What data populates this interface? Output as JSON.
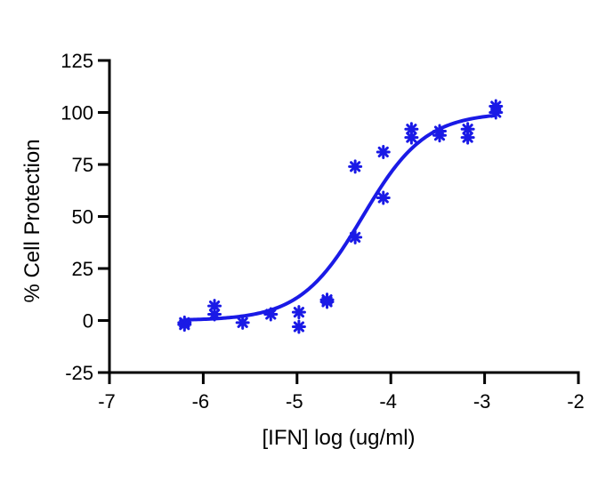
{
  "chart_data": {
    "type": "scatter",
    "title": "",
    "xlabel": "[IFN] log (ug/ml)",
    "ylabel": "% Cell Protection",
    "xlim": [
      -7,
      -2
    ],
    "ylim": [
      -25,
      125
    ],
    "xticks": [
      -7,
      -6,
      -5,
      -4,
      -3,
      -2
    ],
    "yticks": [
      -25,
      0,
      25,
      50,
      75,
      100,
      125
    ],
    "grid": false,
    "legend": "none",
    "color": "#1a1ae6",
    "series": [
      {
        "kind": "points",
        "x": [
          -6.2,
          -6.2,
          -5.88,
          -5.88,
          -5.58,
          -5.28,
          -4.98,
          -4.98,
          -4.68,
          -4.68,
          -4.38,
          -4.38,
          -4.08,
          -4.08,
          -3.78,
          -3.78,
          -3.48,
          -3.48,
          -3.18,
          -3.18,
          -2.88,
          -2.88
        ],
        "y": [
          -1,
          -2,
          7,
          3,
          -1,
          3,
          4,
          -3,
          10,
          9,
          74,
          40,
          81,
          59,
          92,
          88,
          91,
          89,
          92,
          88,
          103,
          100
        ]
      },
      {
        "kind": "fit",
        "model": "sigmoidal dose-response",
        "bottom": 0,
        "top": 100,
        "logEC50": -4.3,
        "hillslope": 1.3
      }
    ]
  }
}
